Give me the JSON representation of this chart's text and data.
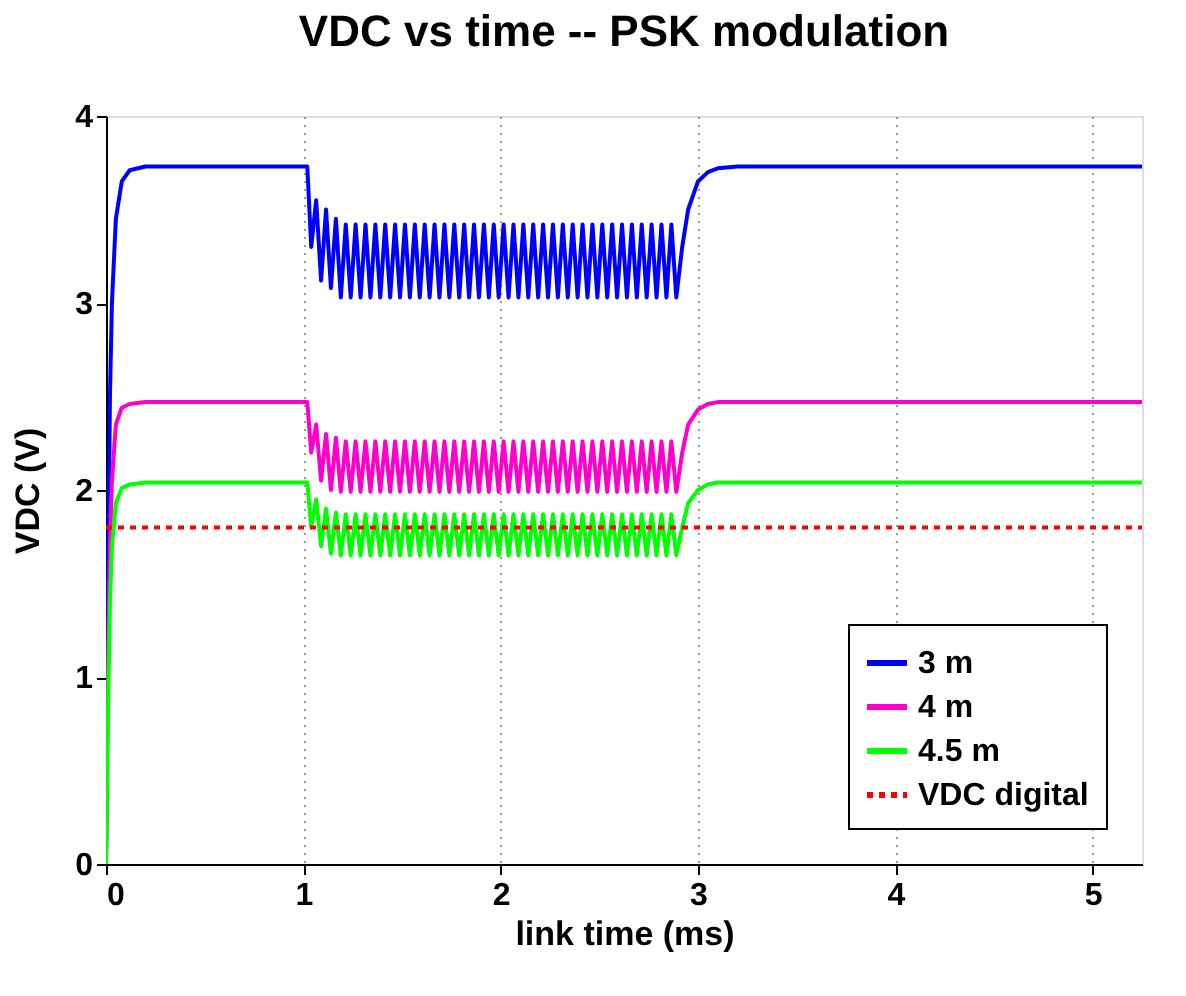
{
  "chart_data": {
    "type": "line",
    "title": "VDC vs time -- PSK modulation",
    "xlabel": "link time (ms)",
    "ylabel": "VDC (V)",
    "x": [
      0,
      0.01,
      0.02,
      0.03,
      0.05,
      0.08,
      0.12,
      0.2,
      1.02,
      1.04,
      1.065,
      1.09,
      1.115,
      1.14,
      1.165,
      1.19,
      1.215,
      1.24,
      1.265,
      1.29,
      1.315,
      1.34,
      1.365,
      1.39,
      1.415,
      1.44,
      1.465,
      1.49,
      1.515,
      1.54,
      1.565,
      1.59,
      1.615,
      1.64,
      1.665,
      1.69,
      1.715,
      1.74,
      1.765,
      1.79,
      1.815,
      1.84,
      1.865,
      1.89,
      1.915,
      1.94,
      1.965,
      1.99,
      2.015,
      2.04,
      2.065,
      2.09,
      2.115,
      2.14,
      2.165,
      2.19,
      2.215,
      2.24,
      2.265,
      2.29,
      2.315,
      2.34,
      2.365,
      2.39,
      2.415,
      2.44,
      2.465,
      2.49,
      2.515,
      2.54,
      2.565,
      2.59,
      2.615,
      2.64,
      2.665,
      2.69,
      2.715,
      2.74,
      2.765,
      2.79,
      2.815,
      2.84,
      2.865,
      2.89,
      2.92,
      2.95,
      3.0,
      3.05,
      3.1,
      3.2,
      5.25
    ],
    "series": [
      {
        "name": "3 m",
        "color": "#0000ff",
        "line_style": "solid",
        "values": [
          0,
          1.5,
          2.5,
          3.0,
          3.45,
          3.65,
          3.71,
          3.73,
          3.73,
          3.3,
          3.55,
          3.12,
          3.5,
          3.08,
          3.45,
          3.03,
          3.42,
          3.03,
          3.42,
          3.03,
          3.42,
          3.03,
          3.42,
          3.03,
          3.42,
          3.03,
          3.42,
          3.03,
          3.42,
          3.03,
          3.42,
          3.03,
          3.42,
          3.03,
          3.42,
          3.03,
          3.42,
          3.03,
          3.42,
          3.03,
          3.42,
          3.03,
          3.42,
          3.03,
          3.42,
          3.03,
          3.42,
          3.03,
          3.42,
          3.03,
          3.42,
          3.03,
          3.42,
          3.03,
          3.42,
          3.03,
          3.42,
          3.03,
          3.42,
          3.03,
          3.42,
          3.03,
          3.42,
          3.03,
          3.42,
          3.03,
          3.42,
          3.03,
          3.42,
          3.03,
          3.42,
          3.03,
          3.42,
          3.03,
          3.42,
          3.03,
          3.42,
          3.03,
          3.42,
          3.03,
          3.42,
          3.03,
          3.42,
          3.03,
          3.3,
          3.5,
          3.65,
          3.7,
          3.72,
          3.73,
          3.73
        ]
      },
      {
        "name": "4 m",
        "color": "#ff00cc",
        "line_style": "solid",
        "values": [
          0,
          1.0,
          1.7,
          2.05,
          2.35,
          2.44,
          2.46,
          2.47,
          2.47,
          2.2,
          2.35,
          2.05,
          2.3,
          2.0,
          2.28,
          1.99,
          2.26,
          1.99,
          2.26,
          1.99,
          2.26,
          1.99,
          2.26,
          1.99,
          2.26,
          1.99,
          2.26,
          1.99,
          2.26,
          1.99,
          2.26,
          1.99,
          2.26,
          1.99,
          2.26,
          1.99,
          2.26,
          1.99,
          2.26,
          1.99,
          2.26,
          1.99,
          2.26,
          1.99,
          2.26,
          1.99,
          2.26,
          1.99,
          2.26,
          1.99,
          2.26,
          1.99,
          2.26,
          1.99,
          2.26,
          1.99,
          2.26,
          1.99,
          2.26,
          1.99,
          2.26,
          1.99,
          2.26,
          1.99,
          2.26,
          1.99,
          2.26,
          1.99,
          2.26,
          1.99,
          2.26,
          1.99,
          2.26,
          1.99,
          2.26,
          1.99,
          2.26,
          1.99,
          2.26,
          1.99,
          2.26,
          1.99,
          2.26,
          1.99,
          2.2,
          2.35,
          2.43,
          2.46,
          2.47,
          2.47,
          2.47
        ]
      },
      {
        "name": "4.5 m",
        "color": "#00ff00",
        "line_style": "solid",
        "values": [
          0,
          0.8,
          1.4,
          1.7,
          1.93,
          2.01,
          2.03,
          2.04,
          2.04,
          1.8,
          1.95,
          1.7,
          1.9,
          1.66,
          1.88,
          1.65,
          1.87,
          1.65,
          1.87,
          1.65,
          1.87,
          1.65,
          1.87,
          1.65,
          1.87,
          1.65,
          1.87,
          1.65,
          1.87,
          1.65,
          1.87,
          1.65,
          1.87,
          1.65,
          1.87,
          1.65,
          1.87,
          1.65,
          1.87,
          1.65,
          1.87,
          1.65,
          1.87,
          1.65,
          1.87,
          1.65,
          1.87,
          1.65,
          1.87,
          1.65,
          1.87,
          1.65,
          1.87,
          1.65,
          1.87,
          1.65,
          1.87,
          1.65,
          1.87,
          1.65,
          1.87,
          1.65,
          1.87,
          1.65,
          1.87,
          1.65,
          1.87,
          1.65,
          1.87,
          1.65,
          1.87,
          1.65,
          1.87,
          1.65,
          1.87,
          1.65,
          1.87,
          1.65,
          1.87,
          1.65,
          1.87,
          1.65,
          1.87,
          1.65,
          1.8,
          1.93,
          2.0,
          2.03,
          2.04,
          2.04,
          2.04
        ]
      },
      {
        "name": "VDC digital",
        "color": "#ff0000",
        "line_style": "dotted",
        "x": [
          0,
          5.25
        ],
        "values": [
          1.8,
          1.8
        ]
      }
    ],
    "xlim": [
      0,
      5.25
    ],
    "xticks": [
      0,
      1,
      2,
      3,
      4,
      5
    ],
    "ylim": [
      0,
      4
    ],
    "yticks": [
      0,
      1,
      2,
      3,
      4
    ],
    "grid": "x",
    "legend": "bottom right"
  }
}
